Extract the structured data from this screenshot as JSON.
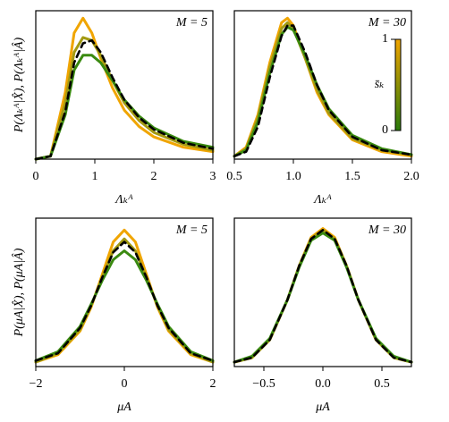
{
  "chart_data": [
    {
      "type": "line",
      "annotation": "M = 5",
      "xlabel": "Λₖᴬ",
      "ylabel": "P(Λₖᴬ|X̂), P(Λₖᴬ|Â)",
      "x": [
        0,
        0.25,
        0.5,
        0.65,
        0.8,
        0.95,
        1.1,
        1.3,
        1.5,
        1.75,
        2.0,
        2.5,
        3.0
      ],
      "xlim": [
        0,
        3
      ],
      "xticks": [
        0,
        1,
        2,
        3
      ],
      "ylim": [
        0,
        1
      ],
      "series": [
        {
          "color": "#f0a500",
          "values": [
            0,
            0.02,
            0.45,
            0.85,
            0.95,
            0.85,
            0.68,
            0.48,
            0.33,
            0.22,
            0.15,
            0.08,
            0.05
          ]
        },
        {
          "color": "#a39a12",
          "values": [
            0,
            0.02,
            0.38,
            0.72,
            0.82,
            0.8,
            0.7,
            0.53,
            0.38,
            0.26,
            0.18,
            0.1,
            0.06
          ]
        },
        {
          "color": "#3a8a10",
          "values": [
            0,
            0.02,
            0.3,
            0.6,
            0.7,
            0.7,
            0.65,
            0.53,
            0.4,
            0.29,
            0.21,
            0.12,
            0.08
          ]
        },
        {
          "color": "#000000",
          "dashed": true,
          "values": [
            0,
            0.02,
            0.32,
            0.65,
            0.78,
            0.8,
            0.72,
            0.55,
            0.4,
            0.28,
            0.2,
            0.11,
            0.07
          ]
        }
      ]
    },
    {
      "type": "line",
      "annotation": "M = 30",
      "xlabel": "Λₖᴬ",
      "x": [
        0.5,
        0.6,
        0.7,
        0.8,
        0.9,
        0.95,
        1.0,
        1.1,
        1.2,
        1.3,
        1.5,
        1.75,
        2.0
      ],
      "xlim": [
        0.5,
        2.0
      ],
      "xticks": [
        0.5,
        {
          "value": 1,
          "label": "1.0"
        },
        1.5,
        {
          "value": 2,
          "label": "2.0"
        }
      ],
      "ylim": [
        0,
        1
      ],
      "series": [
        {
          "color": "#f0a500",
          "values": [
            0.02,
            0.08,
            0.3,
            0.65,
            0.92,
            0.95,
            0.9,
            0.68,
            0.45,
            0.3,
            0.13,
            0.05,
            0.02
          ]
        },
        {
          "color": "#a39a12",
          "values": [
            0.02,
            0.07,
            0.28,
            0.62,
            0.88,
            0.92,
            0.88,
            0.68,
            0.47,
            0.31,
            0.14,
            0.06,
            0.03
          ]
        },
        {
          "color": "#3a8a10",
          "values": [
            0.02,
            0.06,
            0.25,
            0.58,
            0.84,
            0.89,
            0.87,
            0.7,
            0.5,
            0.34,
            0.16,
            0.07,
            0.03
          ]
        },
        {
          "color": "#000000",
          "dashed": true,
          "values": [
            0.02,
            0.05,
            0.22,
            0.55,
            0.83,
            0.9,
            0.9,
            0.72,
            0.5,
            0.33,
            0.15,
            0.06,
            0.03
          ]
        }
      ],
      "colorbar": {
        "label": "s̄ₖ",
        "lim": [
          0,
          1
        ],
        "ticks": [
          0,
          1
        ],
        "colors": [
          "#2a7a0a",
          "#f0a500"
        ]
      }
    },
    {
      "type": "line",
      "annotation": "M = 5",
      "xlabel": "μA",
      "ylabel": "P(μA|X̂), P(μA|Â)",
      "x": [
        -2,
        -1.5,
        -1,
        -0.75,
        -0.5,
        -0.25,
        0,
        0.25,
        0.5,
        0.75,
        1,
        1.5,
        2
      ],
      "xlim": [
        -2,
        2
      ],
      "xticks": [
        {
          "value": -2,
          "label": "−2"
        },
        0,
        2
      ],
      "ylim": [
        0,
        1
      ],
      "series": [
        {
          "color": "#f0a500",
          "values": [
            0.03,
            0.08,
            0.24,
            0.4,
            0.62,
            0.84,
            0.92,
            0.84,
            0.62,
            0.4,
            0.24,
            0.08,
            0.03
          ]
        },
        {
          "color": "#a39a12",
          "values": [
            0.03,
            0.09,
            0.25,
            0.41,
            0.6,
            0.78,
            0.86,
            0.78,
            0.6,
            0.41,
            0.25,
            0.09,
            0.03
          ]
        },
        {
          "color": "#3a8a10",
          "values": [
            0.04,
            0.1,
            0.27,
            0.42,
            0.58,
            0.72,
            0.78,
            0.72,
            0.58,
            0.42,
            0.27,
            0.1,
            0.04
          ]
        },
        {
          "color": "#000000",
          "dashed": true,
          "values": [
            0.04,
            0.09,
            0.26,
            0.41,
            0.6,
            0.77,
            0.84,
            0.77,
            0.6,
            0.41,
            0.26,
            0.09,
            0.04
          ]
        }
      ]
    },
    {
      "type": "line",
      "annotation": "M = 30",
      "xlabel": "μA",
      "x": [
        -0.75,
        -0.6,
        -0.45,
        -0.3,
        -0.2,
        -0.1,
        0,
        0.1,
        0.2,
        0.3,
        0.45,
        0.6,
        0.75
      ],
      "xlim": [
        -0.75,
        0.75
      ],
      "xticks": [
        {
          "value": -0.5,
          "label": "−0.5"
        },
        {
          "value": 0,
          "label": "0.0"
        },
        0.5
      ],
      "ylim": [
        0,
        1
      ],
      "series": [
        {
          "color": "#f0a500",
          "values": [
            0.03,
            0.06,
            0.18,
            0.45,
            0.68,
            0.87,
            0.93,
            0.87,
            0.68,
            0.45,
            0.18,
            0.06,
            0.03
          ]
        },
        {
          "color": "#a39a12",
          "values": [
            0.03,
            0.06,
            0.18,
            0.45,
            0.68,
            0.86,
            0.92,
            0.86,
            0.68,
            0.45,
            0.18,
            0.06,
            0.03
          ]
        },
        {
          "color": "#3a8a10",
          "values": [
            0.03,
            0.07,
            0.19,
            0.45,
            0.67,
            0.85,
            0.9,
            0.85,
            0.67,
            0.45,
            0.19,
            0.07,
            0.03
          ]
        },
        {
          "color": "#000000",
          "dashed": true,
          "values": [
            0.03,
            0.06,
            0.18,
            0.45,
            0.68,
            0.86,
            0.92,
            0.86,
            0.68,
            0.45,
            0.18,
            0.06,
            0.03
          ]
        }
      ]
    }
  ]
}
